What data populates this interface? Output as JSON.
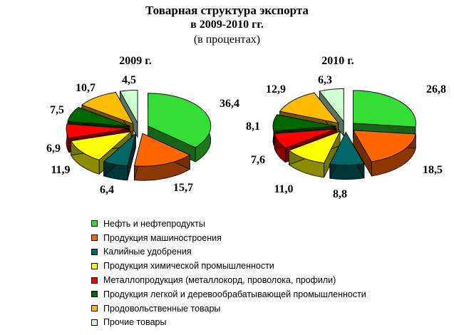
{
  "title": "Товарная структура экспорта",
  "subtitle": "в 2009-2010 гг.",
  "units": "(в процентах)",
  "legend_items": [
    "Нефть и нефтепродукты",
    "Продукция машиностроения",
    "Калийные удобрения",
    "Продукция химической промышленности",
    "Металлопродукция (металлокорд, проволока, профили)",
    "Продукция легкой и деревообрабатывающей промышленности",
    "Продовольственные товары",
    "Прочие товары"
  ],
  "colors": [
    "#33dd33",
    "#ff6600",
    "#006666",
    "#ffff00",
    "#ff0000",
    "#006600",
    "#ffbb00",
    "#ccffcc"
  ],
  "chart_data": [
    {
      "type": "pie",
      "title": "2009 г.",
      "categories": [
        "Нефть и нефтепродукты",
        "Продукция машиностроения",
        "Калийные удобрения",
        "Продукция химической промышленности",
        "Металлопродукция (металлокорд, проволока, профили)",
        "Продукция легкой и деревообрабатывающей промышленности",
        "Продовольственные товары",
        "Прочие товары"
      ],
      "values": [
        36.4,
        15.7,
        6.4,
        11.9,
        6.9,
        7.5,
        10.7,
        4.5
      ],
      "value_labels": [
        "36,4",
        "15,7",
        "6,4",
        "11,9",
        "6,9",
        "7,5",
        "10,7",
        "4,5"
      ],
      "legend": "bottom"
    },
    {
      "type": "pie",
      "title": "2010 г.",
      "categories": [
        "Нефть и нефтепродукты",
        "Продукция машиностроения",
        "Калийные удобрения",
        "Продукция химической промышленности",
        "Металлопродукция (металлокорд, проволока, профили)",
        "Продукция легкой и деревообрабатывающей промышленности",
        "Продовольственные товары",
        "Прочие товары"
      ],
      "values": [
        26.8,
        18.5,
        8.8,
        11.0,
        7.6,
        8.1,
        12.9,
        6.3
      ],
      "value_labels": [
        "26,8",
        "18,5",
        "8,8",
        "11,0",
        "7,6",
        "8,1",
        "12,9",
        "6,3"
      ],
      "legend": "bottom"
    }
  ]
}
